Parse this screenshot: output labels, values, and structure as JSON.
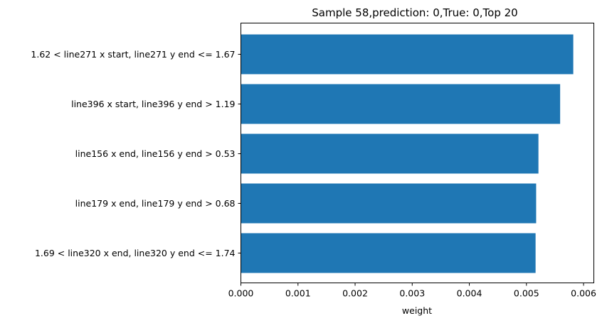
{
  "chart_data": {
    "type": "bar",
    "orientation": "horizontal",
    "title": "Sample 58,prediction: 0,True: 0,Top 20",
    "xlabel": "weight",
    "ylabel": "",
    "xlim": [
      0,
      0.00618
    ],
    "xticks": [
      "0.000",
      "0.001",
      "0.002",
      "0.003",
      "0.004",
      "0.005",
      "0.006"
    ],
    "xtick_values": [
      0,
      0.001,
      0.002,
      0.003,
      0.004,
      0.005,
      0.006
    ],
    "categories": [
      "1.62 < line271 x start, line271 y end <= 1.67",
      "line396 x start, line396 y end > 1.19",
      "line156 x end, line156 y end > 0.53",
      "line179 x end, line179 y end > 0.68",
      "1.69 < line320 x end, line320 y end <= 1.74"
    ],
    "values": [
      0.00582,
      0.00559,
      0.00521,
      0.00517,
      0.00516
    ],
    "bar_color": "#1f77b4",
    "grid": false,
    "legend": "none"
  }
}
